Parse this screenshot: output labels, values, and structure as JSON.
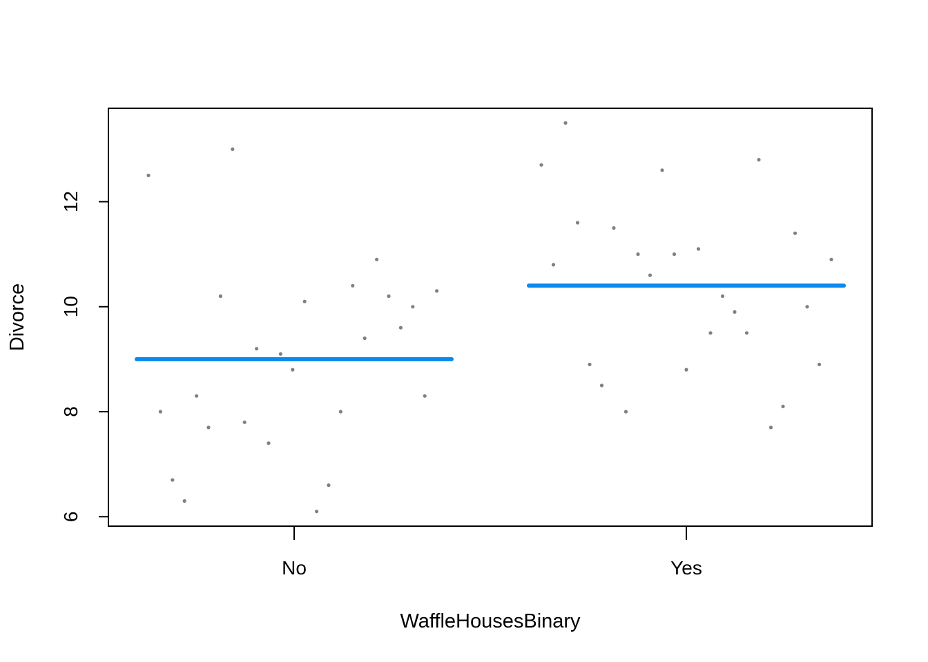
{
  "chart_data": {
    "type": "scatter",
    "xlabel": "WaffleHousesBinary",
    "ylabel": "Divorce",
    "categories": [
      "No",
      "Yes"
    ],
    "yticks": [
      "6",
      "8",
      "10",
      "12"
    ],
    "ylim": [
      5.82,
      13.78
    ],
    "grid": false,
    "colors": {
      "points": "#808080",
      "mean_line": "#0a89ee",
      "axes": "#000000"
    },
    "means": [
      {
        "category": "No",
        "value": 9.0
      },
      {
        "category": "Yes",
        "value": 10.4
      }
    ],
    "groups": [
      {
        "category": "No",
        "values": [
          12.5,
          8.0,
          6.7,
          6.3,
          8.3,
          7.7,
          10.2,
          13.0,
          7.8,
          9.2,
          7.4,
          9.1,
          8.8,
          10.1,
          6.1,
          6.6,
          8.0,
          10.4,
          9.4,
          10.9,
          10.2,
          9.6,
          10.0,
          8.3,
          10.3
        ]
      },
      {
        "category": "Yes",
        "values": [
          12.7,
          10.8,
          13.5,
          11.6,
          8.9,
          8.5,
          11.5,
          8.0,
          11.0,
          10.6,
          12.6,
          11.0,
          8.8,
          11.1,
          9.5,
          10.2,
          9.9,
          9.5,
          12.8,
          7.7,
          8.1,
          11.4,
          10.0,
          8.9,
          10.9
        ]
      }
    ]
  }
}
